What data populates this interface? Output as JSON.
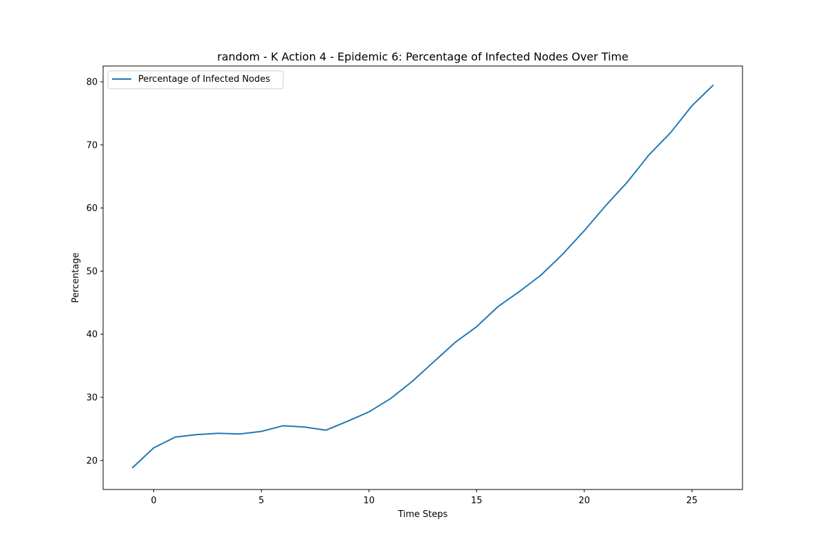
{
  "chart_data": {
    "type": "line",
    "title": "random - K Action 4 - Epidemic 6: Percentage of Infected Nodes Over Time",
    "xlabel": "Time Steps",
    "ylabel": "Percentage",
    "xlim": [
      -2.35,
      27.35
    ],
    "ylim": [
      15.4,
      82.5
    ],
    "xticks": [
      0,
      5,
      10,
      15,
      20,
      25
    ],
    "yticks": [
      20,
      30,
      40,
      50,
      60,
      70,
      80
    ],
    "grid": false,
    "legend_position": "upper-left",
    "series": [
      {
        "name": "Percentage of Infected Nodes",
        "color": "#1f77b4",
        "x": [
          -1,
          0,
          1,
          2,
          3,
          4,
          5,
          6,
          7,
          8,
          9,
          10,
          11,
          12,
          13,
          14,
          15,
          16,
          17,
          18,
          19,
          20,
          21,
          22,
          23,
          24,
          25,
          26
        ],
        "y": [
          18.8,
          22.0,
          23.7,
          24.1,
          24.3,
          24.2,
          24.6,
          25.5,
          25.3,
          24.8,
          26.2,
          27.7,
          29.8,
          32.5,
          35.6,
          38.7,
          41.2,
          44.4,
          46.8,
          49.4,
          52.7,
          56.4,
          60.4,
          64.1,
          68.4,
          71.9,
          76.2,
          79.5
        ]
      }
    ]
  }
}
